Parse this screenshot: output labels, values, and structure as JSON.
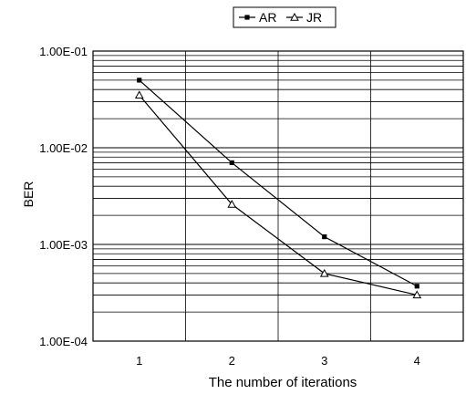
{
  "chart_data": {
    "type": "line",
    "categories": [
      "1",
      "2",
      "3",
      "4"
    ],
    "x": [
      1,
      2,
      3,
      4
    ],
    "xlabel": "The number of iterations",
    "ylabel": "BER",
    "yscale": "log",
    "ylim": [
      0.0001,
      0.1
    ],
    "yticks": [
      {
        "value": 0.1,
        "label": "1.00E-01"
      },
      {
        "value": 0.01,
        "label": "1.00E-02"
      },
      {
        "value": 0.001,
        "label": "1.00E-03"
      },
      {
        "value": 0.0001,
        "label": "1.00E-04"
      }
    ],
    "grid": true,
    "legend_position": "top-center",
    "series": [
      {
        "name": "AR",
        "marker": "square",
        "color": "#000000",
        "values": [
          0.05,
          0.007,
          0.0012,
          0.00037
        ]
      },
      {
        "name": "JR",
        "marker": "triangle",
        "color": "#000000",
        "values": [
          0.035,
          0.0026,
          0.0005,
          0.0003
        ]
      }
    ]
  }
}
